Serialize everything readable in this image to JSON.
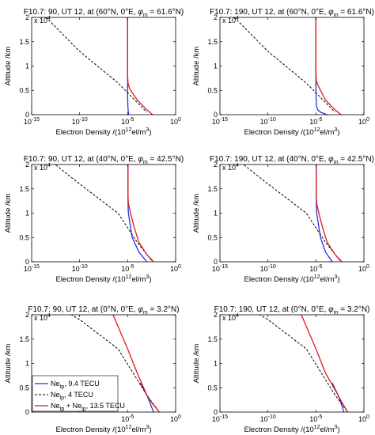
{
  "colors": {
    "blue": "#1f33e6",
    "red": "#e0191c",
    "black": "#000000",
    "axis": "#000000"
  },
  "chart_data": [
    {
      "type": "line",
      "title_parts": [
        "F10.7: 90, UT 12, at (60°N, 0°E, ",
        "φ",
        "m",
        " = 61.6°N)"
      ],
      "xlabel": [
        "Electron Density /(10",
        "12",
        "el/m",
        "3",
        ")"
      ],
      "ylabel": "Altitude /km",
      "x_scale": "log",
      "xlim": [
        1e-15,
        1
      ],
      "ylim": [
        0,
        20000
      ],
      "xticks": [
        {
          "b": "10",
          "e": "-15"
        },
        {
          "b": "10",
          "e": "-10"
        },
        {
          "b": "10",
          "e": "-5"
        },
        {
          "b": "10",
          "e": "0"
        }
      ],
      "yticks": [
        "0",
        "0.5",
        "1",
        "1.5",
        "2"
      ],
      "y_multiplier": {
        "b": "x 10",
        "e": "4"
      },
      "series": [
        {
          "color": "blue",
          "dash": false,
          "x": [
            1.3e-05,
            1.2e-05,
            1.12e-05,
            1.05e-05,
            1e-05,
            1e-05,
            1e-05
          ],
          "y": [
            0,
            500,
            1000,
            2000,
            4000,
            7000,
            20000
          ]
        },
        {
          "color": "black",
          "dash": true,
          "x": [
            1e-17,
            1e-10,
            1e-06,
            1e-05,
            0.001
          ],
          "y": [
            27000,
            13000,
            6500,
            4500,
            500
          ]
        },
        {
          "color": "red",
          "dash": false,
          "x": [
            0.004,
            0.001,
            0.0001,
            3e-05,
            1.5e-05,
            1.1e-05,
            1e-05,
            1e-05
          ],
          "y": [
            0,
            1000,
            3000,
            4500,
            5500,
            6500,
            8000,
            20000
          ]
        }
      ]
    },
    {
      "type": "line",
      "title_parts": [
        "F10.7: 190, UT 12, at (60°N, 0°E, ",
        "φ",
        "m",
        " = 61.6°N)"
      ],
      "xlabel": [
        "Electron Density /(10",
        "12",
        "el/m",
        "3",
        ")"
      ],
      "ylabel": "Altitude /km",
      "x_scale": "log",
      "xlim": [
        1e-15,
        1
      ],
      "ylim": [
        0,
        20000
      ],
      "xticks": [
        {
          "b": "10",
          "e": "-15"
        },
        {
          "b": "10",
          "e": "-10"
        },
        {
          "b": "10",
          "e": "-5"
        },
        {
          "b": "10",
          "e": "0"
        }
      ],
      "yticks": [
        "0",
        "0.5",
        "1",
        "1.5",
        "2"
      ],
      "y_multiplier": {
        "b": "x 10",
        "e": "4"
      },
      "series": [
        {
          "color": "blue",
          "dash": false,
          "x": [
            0.00015,
            3e-05,
            1.5e-05,
            1.1e-05,
            1e-05,
            1e-05
          ],
          "y": [
            0,
            500,
            1000,
            2000,
            5000,
            20000
          ]
        },
        {
          "color": "black",
          "dash": true,
          "x": [
            1e-17,
            1e-10,
            1e-06,
            1e-05,
            0.001
          ],
          "y": [
            27000,
            13000,
            6500,
            4500,
            500
          ]
        },
        {
          "color": "red",
          "dash": false,
          "x": [
            0.004,
            0.001,
            0.0001,
            3e-05,
            1.5e-05,
            1.1e-05,
            1e-05,
            1e-05
          ],
          "y": [
            0,
            1000,
            3000,
            5000,
            6200,
            7000,
            8500,
            20000
          ]
        }
      ]
    },
    {
      "type": "line",
      "title_parts": [
        "F10.7: 90, UT 12, at (40°N, 0°E, ",
        "φ",
        "m",
        " = 42.5°N)"
      ],
      "xlabel": [
        "Electron Density /(10",
        "12",
        "el/m",
        "3",
        ")"
      ],
      "ylabel": "Altitude /km",
      "x_scale": "log",
      "xlim": [
        1e-15,
        1
      ],
      "ylim": [
        0,
        20000
      ],
      "xticks": [
        {
          "b": "10",
          "e": "-15"
        },
        {
          "b": "10",
          "e": "-10"
        },
        {
          "b": "10",
          "e": "-5"
        },
        {
          "b": "10",
          "e": "0"
        }
      ],
      "yticks": [
        "0",
        "0.5",
        "1",
        "1.5",
        "2"
      ],
      "y_multiplier": {
        "b": "x 10",
        "e": "4"
      },
      "series": [
        {
          "color": "blue",
          "dash": false,
          "x": [
            0.001,
            0.00015,
            3e-05,
            1.2e-05,
            1.1e-05,
            1.1e-05
          ],
          "y": [
            0,
            2000,
            5000,
            10000,
            12000,
            20000
          ]
        },
        {
          "color": "black",
          "dash": true,
          "x": [
            1e-17,
            1e-10,
            1e-06,
            0.0001,
            0.004
          ],
          "y": [
            27000,
            16000,
            10000,
            4000,
            0
          ]
        },
        {
          "color": "red",
          "dash": false,
          "x": [
            0.005,
            0.001,
            0.00015,
            5e-05,
            2e-05,
            1.2e-05,
            1.1e-05,
            1.1e-05
          ],
          "y": [
            0,
            1500,
            4000,
            7000,
            10000,
            12000,
            13500,
            20000
          ]
        }
      ]
    },
    {
      "type": "line",
      "title_parts": [
        "F10.7: 190, UT 12, at (40°N, 0°E, ",
        "φ",
        "m",
        " = 42.5°N)"
      ],
      "xlabel": [
        "Electron Density /(10",
        "12",
        "el/m",
        "3",
        ")"
      ],
      "ylabel": "Altitude /km",
      "x_scale": "log",
      "xlim": [
        1e-15,
        1
      ],
      "ylim": [
        0,
        20000
      ],
      "xticks": [
        {
          "b": "10",
          "e": "-15"
        },
        {
          "b": "10",
          "e": "-10"
        },
        {
          "b": "10",
          "e": "-5"
        },
        {
          "b": "10",
          "e": "0"
        }
      ],
      "yticks": [
        "0",
        "0.5",
        "1",
        "1.5",
        "2"
      ],
      "y_multiplier": {
        "b": "x 10",
        "e": "4"
      },
      "series": [
        {
          "color": "blue",
          "dash": false,
          "x": [
            0.0005,
            0.0001,
            3e-05,
            1.2e-05,
            1.1e-05,
            1.1e-05
          ],
          "y": [
            0,
            2000,
            5000,
            10000,
            12000,
            20000
          ]
        },
        {
          "color": "black",
          "dash": true,
          "x": [
            1e-17,
            1e-10,
            1e-06,
            0.0001,
            0.004
          ],
          "y": [
            27000,
            16000,
            10000,
            4000,
            0
          ]
        },
        {
          "color": "red",
          "dash": false,
          "x": [
            0.005,
            0.001,
            0.00015,
            5e-05,
            2e-05,
            1.2e-05,
            1.1e-05,
            1.1e-05
          ],
          "y": [
            0,
            1500,
            4000,
            7000,
            10000,
            12000,
            13500,
            20000
          ]
        }
      ]
    },
    {
      "type": "line",
      "title_parts": [
        "F10.7: 90, UT 12, at (0°N, 0°E, ",
        "φ",
        "m",
        " = 3.2°N)"
      ],
      "xlabel": [
        "Electron Density /(10",
        "12",
        "el/m",
        "3",
        ")"
      ],
      "ylabel": "Altitude /km",
      "x_scale": "log",
      "xlim": [
        1e-15,
        1
      ],
      "ylim": [
        0,
        20000
      ],
      "xticks": [
        {
          "b": "10",
          "e": "-5"
        },
        {
          "b": "10",
          "e": "0"
        }
      ],
      "yticks": [
        "0",
        "0.5",
        "1",
        "1.5",
        "2"
      ],
      "y_multiplier": {
        "b": "x 10",
        "e": "4"
      },
      "series": [
        {
          "color": "blue",
          "dash": false,
          "x": [
            0.005,
            0.002,
            0.001,
            0.0002
          ],
          "y": [
            0,
            2000,
            3500,
            6000
          ]
        },
        {
          "color": "black",
          "dash": true,
          "x": [
            1e-17,
            1e-10,
            1e-06,
            0.001,
            0.02
          ],
          "y": [
            27000,
            19000,
            13000,
            3500,
            0
          ]
        },
        {
          "color": "red",
          "dash": false,
          "x": [
            0.02,
            0.003,
            0.001,
            0.0001,
            1e-05,
            3e-07
          ],
          "y": [
            0,
            2000,
            3500,
            8000,
            13000,
            20000
          ]
        }
      ],
      "legend": {
        "position": "lower-left",
        "entries": [
          {
            "color": "blue",
            "dash": false,
            "parts": [
              "Ne",
              "tp",
              ", 9.4 TECU",
              "",
              ""
            ]
          },
          {
            "color": "black",
            "dash": true,
            "parts": [
              "Ne",
              "lp",
              ", 4 TECU",
              "",
              ""
            ]
          },
          {
            "color": "red",
            "dash": false,
            "parts": [
              "Ne",
              "tp",
              " + Ne",
              "lp",
              ", 13.5 TECU"
            ]
          }
        ]
      }
    },
    {
      "type": "line",
      "title_parts": [
        "F10.7: 190, UT 12, at (0°N, 0°E, ",
        "φ",
        "m",
        " = 3.2°N)"
      ],
      "xlabel": [
        "Electron Density /(10",
        "12",
        "el/m",
        "3",
        ")"
      ],
      "ylabel": "Altitude /km",
      "x_scale": "log",
      "xlim": [
        1e-15,
        1
      ],
      "ylim": [
        0,
        20000
      ],
      "xticks": [
        {
          "b": "10",
          "e": "-15"
        },
        {
          "b": "10",
          "e": "-10"
        },
        {
          "b": "10",
          "e": "-5"
        },
        {
          "b": "10",
          "e": "0"
        }
      ],
      "yticks": [
        "0",
        "0.5",
        "1",
        "1.5",
        "2"
      ],
      "y_multiplier": {
        "b": "x 10",
        "e": "4"
      },
      "series": [
        {
          "color": "blue",
          "dash": false,
          "x": [
            0.008,
            0.004,
            0.002,
            0.0005
          ],
          "y": [
            0,
            2000,
            3500,
            6000
          ]
        },
        {
          "color": "black",
          "dash": true,
          "x": [
            1e-17,
            1e-10,
            1e-06,
            0.001,
            0.02
          ],
          "y": [
            27000,
            19000,
            13000,
            3500,
            0
          ]
        },
        {
          "color": "red",
          "dash": false,
          "x": [
            0.02,
            0.005,
            0.002,
            0.0001,
            1e-05,
            3e-07
          ],
          "y": [
            0,
            2000,
            3500,
            8000,
            13000,
            20000
          ]
        }
      ]
    }
  ]
}
